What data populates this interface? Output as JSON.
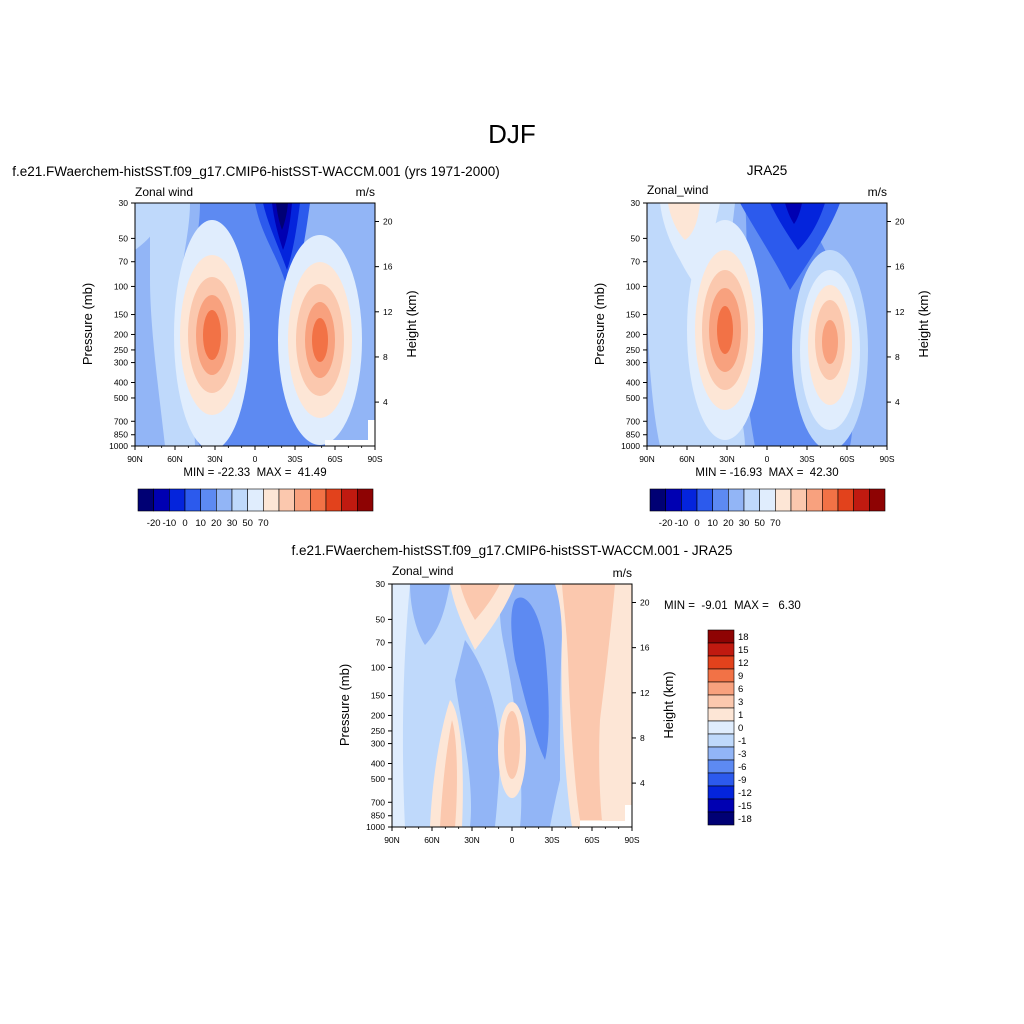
{
  "figure": {
    "title": "DJF"
  },
  "chart_data": [
    {
      "type": "heatmap",
      "id": "model",
      "title": "f.e21.FWaerchem-histSST.f09_g17.CMIP6-histSST-WACCM.001 (yrs 1971-2000)",
      "left_label": "Zonal wind",
      "right_label": "m/s",
      "xlabel": "",
      "ylabel": "Pressure (mb)",
      "y2label": "Height (km)",
      "x_ticks": [
        "90N",
        "60N",
        "30N",
        "0",
        "30S",
        "60S",
        "90S"
      ],
      "x_range": [
        90,
        -90
      ],
      "y_ticks": [
        30,
        50,
        70,
        100,
        150,
        200,
        250,
        300,
        400,
        500,
        700,
        850,
        1000
      ],
      "y_scale": "log",
      "y_range": [
        30,
        1000
      ],
      "y2_ticks": [
        20,
        16,
        12,
        8,
        4
      ],
      "stats": "MIN = -22.33  MAX =  41.49",
      "min": -22.33,
      "max": 41.49,
      "colorbar": {
        "orientation": "horizontal",
        "labels": [
          "-20",
          "-10",
          "0",
          "10",
          "20",
          "30",
          "50",
          "70"
        ],
        "colors": [
          "#000074",
          "#0000B2",
          "#0424DC",
          "#2C5AED",
          "#5D8AF2",
          "#92B5F6",
          "#BFD9FB",
          "#E0EDFD",
          "#FDE6D6",
          "#FBC8AE",
          "#F8A17E",
          "#F27246",
          "#E2421C",
          "#C01A10",
          "#8E0303"
        ]
      },
      "features": {
        "westerly_jet_north": {
          "lat": 30,
          "pressure": 200,
          "peak": 41.49
        },
        "westerly_jet_south": {
          "lat": -50,
          "pressure": 200,
          "peak": 35
        },
        "easterly_core": {
          "lat": -12,
          "pressure": 30,
          "peak": -22.33
        }
      }
    },
    {
      "type": "heatmap",
      "id": "obs",
      "title": "JRA25",
      "left_label": "Zonal_wind",
      "right_label": "m/s",
      "xlabel": "",
      "ylabel": "Pressure (mb)",
      "y2label": "Height (km)",
      "x_ticks": [
        "90N",
        "60N",
        "30N",
        "0",
        "30S",
        "60S",
        "90S"
      ],
      "x_range": [
        90,
        -90
      ],
      "y_ticks": [
        30,
        50,
        70,
        100,
        150,
        200,
        250,
        300,
        400,
        500,
        700,
        850,
        1000
      ],
      "y_scale": "log",
      "y_range": [
        30,
        1000
      ],
      "y2_ticks": [
        20,
        16,
        12,
        8,
        4
      ],
      "stats": "MIN = -16.93  MAX =  42.30",
      "min": -16.93,
      "max": 42.3,
      "colorbar": {
        "orientation": "horizontal",
        "labels": [
          "-20",
          "-10",
          "0",
          "10",
          "20",
          "30",
          "50",
          "70"
        ],
        "colors": [
          "#000074",
          "#0000B2",
          "#0424DC",
          "#2C5AED",
          "#5D8AF2",
          "#92B5F6",
          "#BFD9FB",
          "#E0EDFD",
          "#FDE6D6",
          "#FBC8AE",
          "#F8A17E",
          "#F27246",
          "#E2421C",
          "#C01A10",
          "#8E0303"
        ]
      },
      "features": {
        "westerly_jet_north": {
          "lat": 30,
          "pressure": 200,
          "peak": 42.3
        },
        "westerly_jet_south": {
          "lat": -47,
          "pressure": 200,
          "peak": 30
        },
        "easterly_core": {
          "lat": -15,
          "pressure": 30,
          "peak": -16.93
        }
      }
    },
    {
      "type": "heatmap",
      "id": "diff",
      "title": "f.e21.FWaerchem-histSST.f09_g17.CMIP6-histSST-WACCM.001 - JRA25",
      "left_label": "Zonal_wind",
      "right_label": "m/s",
      "xlabel": "",
      "ylabel": "Pressure (mb)",
      "y2label": "Height (km)",
      "x_ticks": [
        "90N",
        "60N",
        "30N",
        "0",
        "30S",
        "60S",
        "90S"
      ],
      "x_range": [
        90,
        -90
      ],
      "y_ticks": [
        30,
        50,
        70,
        100,
        150,
        200,
        250,
        300,
        400,
        500,
        700,
        850,
        1000
      ],
      "y_scale": "log",
      "y_range": [
        30,
        1000
      ],
      "y2_ticks": [
        20,
        16,
        12,
        8,
        4
      ],
      "stats": "MIN =  -9.01  MAX =   6.30",
      "min": -9.01,
      "max": 6.3,
      "colorbar": {
        "orientation": "vertical",
        "labels": [
          "18",
          "15",
          "12",
          "9",
          "6",
          "3",
          "1",
          "0",
          "-1",
          "-3",
          "-6",
          "-9",
          "-12",
          "-15",
          "-18"
        ],
        "colors": [
          "#8E0303",
          "#C01A10",
          "#E2421C",
          "#F27246",
          "#F8A17E",
          "#FBC8AE",
          "#FDE6D6",
          "#E0EDFD",
          "#BFD9FB",
          "#92B5F6",
          "#5D8AF2",
          "#2C5AED",
          "#0424DC",
          "#0000B2",
          "#000074"
        ]
      }
    }
  ]
}
